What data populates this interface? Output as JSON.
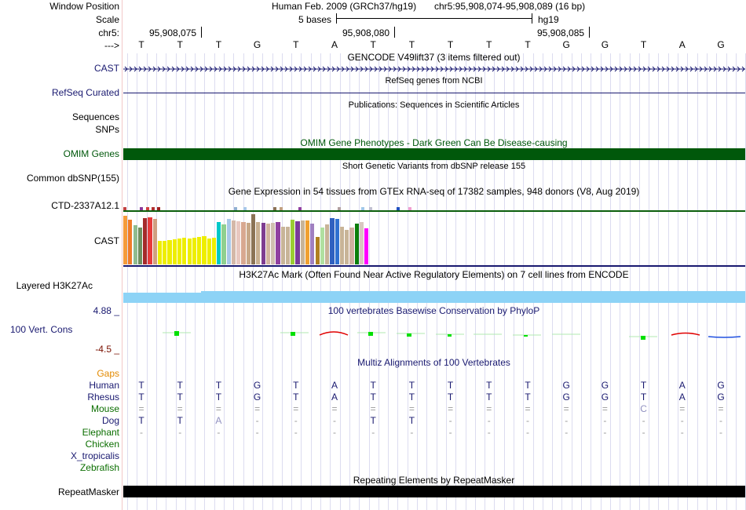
{
  "position": {
    "window_label": "Window Position",
    "scale_label": "Scale",
    "chrom_label": "chr5:",
    "strand_label": "--->",
    "assembly_text": "Human Feb. 2009 (GRCh37/hg19)",
    "coords_text": "chr5:95,908,074-95,908,089 (16 bp)",
    "scale_text": "5 bases",
    "db_text": "hg19",
    "ticks": [
      "95,908,075",
      "95,908,080",
      "95,908,085"
    ]
  },
  "sequence": [
    "T",
    "T",
    "T",
    "G",
    "T",
    "A",
    "T",
    "T",
    "T",
    "T",
    "T",
    "G",
    "G",
    "T",
    "A",
    "G"
  ],
  "tracks": {
    "gencode": {
      "title": "GENCODE V49lift37 (3 items filtered out)",
      "label": "CAST"
    },
    "refseq": {
      "title": "RefSeq genes from NCBI",
      "label": "RefSeq Curated"
    },
    "publications": {
      "title": "Publications: Sequences in Scientific Articles",
      "label": "Sequences"
    },
    "snps": {
      "label": "SNPs"
    },
    "omim": {
      "title": "OMIM Gene Phenotypes - Dark Green Can Be Disease-causing",
      "label": "OMIM Genes",
      "color": "#00580b"
    },
    "dbsnp": {
      "title": "Short Genetic Variants from dbSNP release 155",
      "label": "Common dbSNP(155)"
    },
    "gtex": {
      "title": "Gene Expression in 54 tissues from GTEx RNA-seq of 17382 samples, 948 donors (V8, Aug 2019)",
      "label_top": "CTD-2337A12.1",
      "label_main": "CAST"
    },
    "h3k27ac": {
      "title": "H3K27Ac Mark (Often Found Near Active Regulatory Elements) on 7 cell lines from ENCODE",
      "label": "Layered H3K27Ac"
    },
    "phylop": {
      "title": "100 vertebrates Basewise Conservation by PhyloP",
      "label": "100 Vert. Cons",
      "max": "4.88 _",
      "min": "-4.5 _"
    },
    "multiz": {
      "title": "Multiz Alignments of 100 Vertebrates",
      "gaps_label": "Gaps",
      "species": [
        {
          "name": "Human",
          "bases": [
            "T",
            "T",
            "T",
            "G",
            "T",
            "A",
            "T",
            "T",
            "T",
            "T",
            "T",
            "G",
            "G",
            "T",
            "A",
            "G"
          ]
        },
        {
          "name": "Rhesus",
          "bases": [
            "T",
            "T",
            "T",
            "G",
            "T",
            "A",
            "T",
            "T",
            "T",
            "T",
            "T",
            "G",
            "G",
            "T",
            "A",
            "G"
          ]
        },
        {
          "name": "Mouse",
          "bases": [
            "=",
            "=",
            "=",
            "=",
            "=",
            "=",
            "=",
            "=",
            "=",
            "=",
            "=",
            "=",
            "=",
            "C",
            "=",
            "="
          ]
        },
        {
          "name": "Dog",
          "bases": [
            "T",
            "T",
            "A",
            "-",
            "-",
            "-",
            "T",
            "T",
            "-",
            "-",
            "-",
            "-",
            "-",
            "-",
            "-",
            "-"
          ]
        },
        {
          "name": "Elephant",
          "bases": [
            "-",
            "-",
            "-",
            "-",
            "-",
            "-",
            "-",
            "-",
            "-",
            "-",
            "-",
            "-",
            "-",
            "-",
            "-",
            "-"
          ]
        },
        {
          "name": "Chicken",
          "bases": []
        },
        {
          "name": "X_tropicalis",
          "bases": []
        },
        {
          "name": "Zebrafish",
          "bases": []
        }
      ]
    },
    "repeatmasker": {
      "title": "Repeating Elements by RepeatMasker",
      "label": "RepeatMasker"
    }
  },
  "colors": {
    "navy": "#191970",
    "omim": "#00580b",
    "gaps": "#e38a00",
    "species_green": "#0b6e00",
    "h3k27ac": "#8dd3f6",
    "phylop_max": "#191970",
    "phylop_min": "#7a1000"
  }
}
